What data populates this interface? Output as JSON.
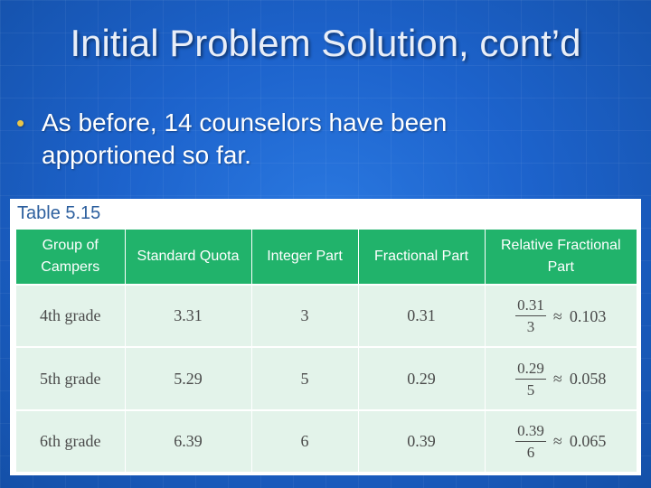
{
  "slide": {
    "title": "Initial Problem Solution, cont’d",
    "bullet": "As before, 14 counselors have been apportioned so far.",
    "bullet_marker": "•"
  },
  "table": {
    "caption": "Table 5.15",
    "headers": [
      "Group of Campers",
      "Standard Quota",
      "Integer Part",
      "Fractional Part",
      "Relative Fractional Part"
    ],
    "rows": [
      {
        "group": "4th grade",
        "quota": "3.31",
        "integer": "3",
        "fractional": "0.31",
        "rel_num": "0.31",
        "rel_den": "3",
        "approx": "≈",
        "rel_value": "0.103"
      },
      {
        "group": "5th grade",
        "quota": "5.29",
        "integer": "5",
        "fractional": "0.29",
        "rel_num": "0.29",
        "rel_den": "5",
        "approx": "≈",
        "rel_value": "0.058"
      },
      {
        "group": "6th grade",
        "quota": "6.39",
        "integer": "6",
        "fractional": "0.39",
        "rel_num": "0.39",
        "rel_den": "6",
        "approx": "≈",
        "rel_value": "0.065"
      }
    ]
  },
  "colors": {
    "background": "#1a5fc4",
    "header_green": "#21b36b",
    "row_fill": "#e3f3ea",
    "caption_blue": "#2c5f9e",
    "bullet_marker": "#e8c54a"
  }
}
